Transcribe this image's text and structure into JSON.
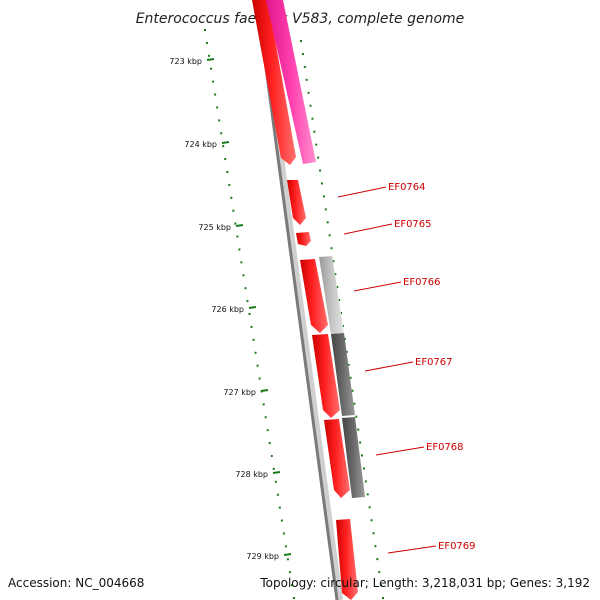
{
  "map": {
    "title": "Enterococcus faecalis V583, complete genome",
    "tick_labels": [
      "723 kbp",
      "724 kbp",
      "725 kbp",
      "726 kbp",
      "727 kbp",
      "728 kbp",
      "729 kbp"
    ],
    "gene_labels": [
      "EF0764",
      "EF0765",
      "EF0766",
      "EF0767",
      "EF0768",
      "EF0769"
    ],
    "colors": {
      "backbone": "#808080",
      "cds_red": "#ff1a1a",
      "cds_pink": "#ff33aa",
      "tick_green": "#1a7a1a",
      "label_red": "#cc0000",
      "homolog_light_gray": "#bbbbbb",
      "homolog_dark_gray": "#666666"
    }
  },
  "footer": {
    "accession": "Accession: NC_004668",
    "stats": "Topology: circular; Length: 3,218,031 bp; Genes: 3,192"
  }
}
